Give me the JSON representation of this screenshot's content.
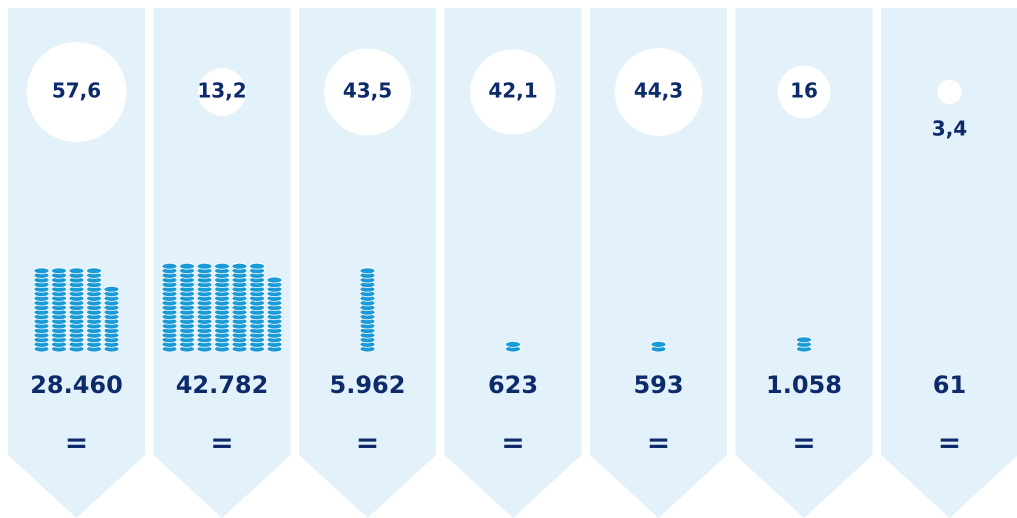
{
  "columns": [
    {
      "rate": 57.6,
      "rate_label": "57,6",
      "amount": 28460,
      "amount_label": "28.460",
      "sign": "="
    },
    {
      "rate": 13.2,
      "rate_label": "13,2",
      "amount": 42782,
      "amount_label": "42.782",
      "sign": "="
    },
    {
      "rate": 43.5,
      "rate_label": "43,5",
      "amount": 5962,
      "amount_label": "5.962",
      "sign": "="
    },
    {
      "rate": 42.1,
      "rate_label": "42,1",
      "amount": 623,
      "amount_label": "623",
      "sign": "="
    },
    {
      "rate": 44.3,
      "rate_label": "44,3",
      "amount": 593,
      "amount_label": "593",
      "sign": "="
    },
    {
      "rate": 16,
      "rate_label": "16",
      "amount": 1058,
      "amount_label": "1.058",
      "sign": "="
    },
    {
      "rate": 3.4,
      "rate_label": "3,4",
      "amount": 61,
      "amount_label": "61",
      "sign": "="
    }
  ]
}
